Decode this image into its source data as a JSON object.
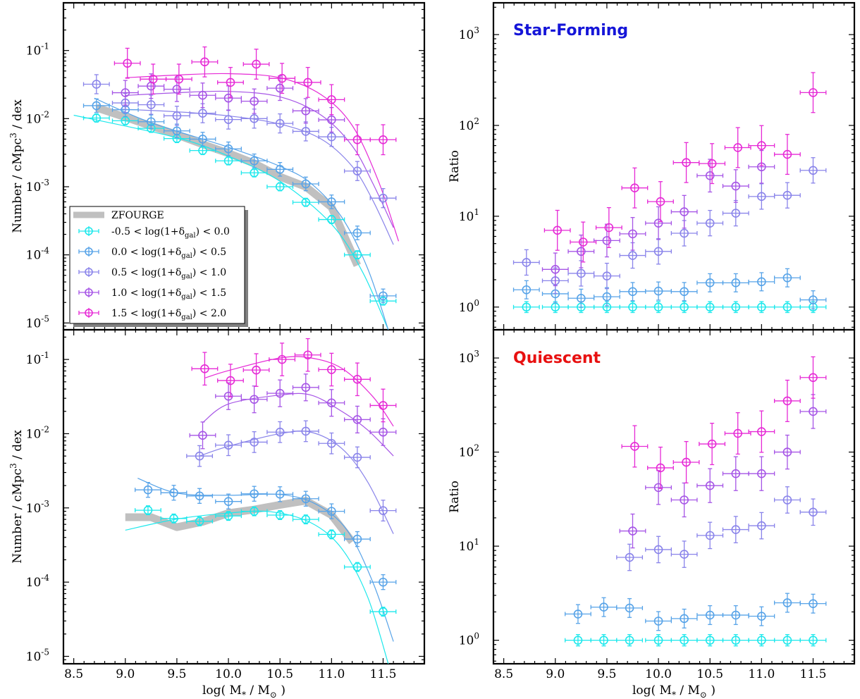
{
  "colors": {
    "bins": [
      "#1de8ec",
      "#57a3e8",
      "#8a84ea",
      "#a655e6",
      "#e62ad6"
    ],
    "zfourge": "#c0c0c0",
    "starforming_title": "#1515d8",
    "quiescent_title": "#e81010"
  },
  "axes": {
    "xlabel_left": "log( M",
    "xlabel_ast": "*",
    "xlabel_mid": " / M",
    "xlabel_sun": "⊙",
    "xlabel_right": " )",
    "ylabel_number_main": "Number / cMpc",
    "ylabel_number_exp": "3",
    "ylabel_number_tail": " / dex",
    "ylabel_ratio": "Ratio",
    "x_ticks": [
      "8.5",
      "9.0",
      "9.5",
      "10.0",
      "10.5",
      "11.0",
      "11.5"
    ]
  },
  "legend": {
    "zfourge": "ZFOURGE",
    "entries": [
      {
        "pre": "-0.5 < log(1+δ",
        "sub": "gal",
        "post": ") < 0.0"
      },
      {
        "pre": "0.0 < log(1+δ",
        "sub": "gal",
        "post": ") < 0.5"
      },
      {
        "pre": "0.5 < log(1+δ",
        "sub": "gal",
        "post": ") < 1.0"
      },
      {
        "pre": "1.0 < log(1+δ",
        "sub": "gal",
        "post": ") < 1.5"
      },
      {
        "pre": "1.5 < log(1+δ",
        "sub": "gal",
        "post": ") < 2.0"
      }
    ]
  },
  "panel_titles": {
    "starforming": "Star-Forming",
    "quiescent": "Quiescent"
  },
  "chart_data": [
    {
      "id": "sf_number",
      "type": "scatter",
      "title": "",
      "xlabel": "log( M* / M⊙ )",
      "ylabel": "Number / cMpc^3 / dex",
      "xlim": [
        8.4,
        11.9
      ],
      "ylim_log10": [
        -5.1,
        -0.3
      ],
      "yscale": "log",
      "y_ticks": [
        "10^-5",
        "10^-4",
        "10^-3",
        "10^-2",
        "10^-1"
      ],
      "zfourge": {
        "x": [
          8.72,
          9.0,
          9.25,
          9.5,
          9.75,
          10.0,
          10.25,
          10.5,
          10.75,
          11.0,
          11.25
        ],
        "y": [
          0.0145,
          0.0105,
          0.0078,
          0.0058,
          0.0042,
          0.0031,
          0.0022,
          0.0014,
          0.001,
          0.0005,
          7e-05
        ]
      },
      "series": [
        {
          "x": [
            8.72,
            9.0,
            9.25,
            9.5,
            9.75,
            10.0,
            10.25,
            10.5,
            10.75,
            11.0,
            11.25,
            11.5
          ],
          "y": [
            0.0102,
            0.0093,
            0.0072,
            0.0051,
            0.0034,
            0.0024,
            0.0016,
            0.001,
            0.00059,
            0.00033,
            0.0001,
            2.1e-05
          ],
          "fit": [
            [
              8.5,
              -1.95
            ],
            [
              9.5,
              -2.28
            ],
            [
              10.0,
              -2.55
            ],
            [
              10.5,
              -2.92
            ],
            [
              11.0,
              -3.55
            ],
            [
              11.3,
              -4.25
            ],
            [
              11.55,
              -5.1
            ]
          ]
        },
        {
          "x": [
            8.72,
            9.0,
            9.25,
            9.5,
            9.75,
            10.0,
            10.25,
            10.5,
            10.75,
            11.0,
            11.25,
            11.5
          ],
          "y": [
            0.0155,
            0.0135,
            0.009,
            0.0066,
            0.005,
            0.0036,
            0.0024,
            0.0018,
            0.0011,
            0.0006,
            0.00021,
            2.5e-05
          ],
          "fit": [
            [
              8.7,
              -1.7
            ],
            [
              9.25,
              -2.06
            ],
            [
              10.0,
              -2.42
            ],
            [
              10.5,
              -2.7
            ],
            [
              10.8,
              -2.95
            ],
            [
              11.1,
              -3.45
            ],
            [
              11.35,
              -4.2
            ],
            [
              11.55,
              -5.1
            ]
          ]
        },
        {
          "x": [
            8.72,
            9.0,
            9.25,
            9.5,
            9.75,
            10.0,
            10.25,
            10.5,
            10.75,
            11.0,
            11.25,
            11.5
          ],
          "y": [
            0.032,
            0.017,
            0.016,
            0.011,
            0.012,
            0.0097,
            0.01,
            0.0085,
            0.0065,
            0.0054,
            0.0017,
            0.00068
          ],
          "fit": [
            [
              8.95,
              -1.86
            ],
            [
              9.5,
              -1.9
            ],
            [
              10.0,
              -1.96
            ],
            [
              10.5,
              -2.08
            ],
            [
              10.9,
              -2.3
            ],
            [
              11.2,
              -2.7
            ],
            [
              11.4,
              -3.2
            ],
            [
              11.6,
              -3.85
            ]
          ]
        },
        {
          "x": [
            9.0,
            9.25,
            9.5,
            9.75,
            10.0,
            10.25,
            10.5,
            10.75,
            11.0
          ],
          "y": [
            0.024,
            0.03,
            0.027,
            0.022,
            0.02,
            0.018,
            0.028,
            0.013,
            0.0096
          ],
          "fit": [
            [
              9.0,
              -1.66
            ],
            [
              9.5,
              -1.62
            ],
            [
              10.0,
              -1.6
            ],
            [
              10.5,
              -1.68
            ],
            [
              10.9,
              -1.95
            ],
            [
              11.2,
              -2.4
            ],
            [
              11.4,
              -2.95
            ],
            [
              11.6,
              -3.6
            ]
          ]
        },
        {
          "x": [
            9.02,
            9.27,
            9.52,
            9.77,
            10.02,
            10.27,
            10.52,
            10.77,
            11.0,
            11.25,
            11.5
          ],
          "y": [
            0.065,
            0.038,
            0.038,
            0.068,
            0.034,
            0.063,
            0.039,
            0.034,
            0.019,
            0.0049,
            0.0049
          ],
          "fit": [
            [
              9.0,
              -1.4
            ],
            [
              9.5,
              -1.36
            ],
            [
              10.0,
              -1.34
            ],
            [
              10.5,
              -1.4
            ],
            [
              10.9,
              -1.65
            ],
            [
              11.2,
              -2.1
            ],
            [
              11.45,
              -2.9
            ],
            [
              11.65,
              -3.8
            ]
          ]
        }
      ]
    },
    {
      "id": "sf_ratio",
      "type": "scatter",
      "title": "Star-Forming",
      "xlabel": "log( M* / M⊙ )",
      "ylabel": "Ratio",
      "xlim": [
        8.4,
        11.9
      ],
      "ylim_log10": [
        -0.25,
        3.35
      ],
      "yscale": "log",
      "y_ticks": [
        "10^0",
        "10^1",
        "10^2",
        "10^3"
      ],
      "series": [
        {
          "x": [
            8.72,
            9.0,
            9.25,
            9.5,
            9.75,
            10.0,
            10.25,
            10.5,
            10.75,
            11.0,
            11.25,
            11.5
          ],
          "y": [
            1,
            1,
            1,
            1,
            1,
            1,
            1,
            1,
            1,
            1,
            1,
            1
          ]
        },
        {
          "x": [
            8.72,
            9.0,
            9.25,
            9.5,
            9.75,
            10.0,
            10.25,
            10.5,
            10.75,
            11.0,
            11.25,
            11.5
          ],
          "y": [
            1.55,
            1.4,
            1.25,
            1.3,
            1.48,
            1.5,
            1.48,
            1.85,
            1.85,
            1.9,
            2.1,
            1.2
          ]
        },
        {
          "x": [
            8.72,
            9.0,
            9.25,
            9.5,
            9.75,
            10.0,
            10.25,
            10.5,
            10.75,
            11.0,
            11.25,
            11.5
          ],
          "y": [
            3.1,
            1.95,
            2.35,
            2.2,
            3.7,
            4.1,
            6.5,
            8.4,
            10.8,
            16.5,
            17,
            32
          ]
        },
        {
          "x": [
            9.0,
            9.25,
            9.5,
            9.75,
            10.0,
            10.25,
            10.5,
            10.75,
            11.0
          ],
          "y": [
            2.6,
            4.1,
            5.4,
            6.4,
            8.4,
            11.2,
            28,
            21.5,
            35
          ]
        },
        {
          "x": [
            9.02,
            9.27,
            9.52,
            9.77,
            10.02,
            10.27,
            10.52,
            10.77,
            11.0,
            11.25,
            11.5
          ],
          "y": [
            7,
            5.2,
            7.5,
            20.5,
            14.5,
            39,
            38,
            57,
            60,
            48,
            230
          ]
        }
      ]
    },
    {
      "id": "q_number",
      "type": "scatter",
      "title": "",
      "xlabel": "log( M* / M⊙ )",
      "ylabel": "Number / cMpc^3 / dex",
      "xlim": [
        8.4,
        11.9
      ],
      "ylim_log10": [
        -5.1,
        -0.6
      ],
      "yscale": "log",
      "y_ticks": [
        "10^-5",
        "10^-4",
        "10^-3",
        "10^-2",
        "10^-1"
      ],
      "zfourge": {
        "x": [
          9.0,
          9.25,
          9.5,
          9.75,
          10.0,
          10.25,
          10.5,
          10.75,
          11.0,
          11.2
        ],
        "y": [
          0.00075,
          0.00075,
          0.00055,
          0.00065,
          0.00085,
          0.00095,
          0.0011,
          0.00125,
          0.0008,
          0.00035
        ]
      },
      "series": [
        {
          "x": [
            9.22,
            9.47,
            9.72,
            10.0,
            10.25,
            10.5,
            10.75,
            11.0,
            11.25,
            11.5
          ],
          "y": [
            0.00093,
            0.00072,
            0.00066,
            0.00078,
            0.0009,
            0.0008,
            0.0007,
            0.00044,
            0.00016,
            4e-05
          ],
          "fit": [
            [
              9.0,
              -3.3
            ],
            [
              9.5,
              -3.15
            ],
            [
              10.0,
              -3.07
            ],
            [
              10.4,
              -3.05
            ],
            [
              10.8,
              -3.2
            ],
            [
              11.1,
              -3.55
            ],
            [
              11.35,
              -4.2
            ],
            [
              11.55,
              -5.1
            ]
          ]
        },
        {
          "x": [
            9.22,
            9.47,
            9.72,
            10.0,
            10.25,
            10.5,
            10.75,
            11.0,
            11.25,
            11.5
          ],
          "y": [
            0.00175,
            0.0016,
            0.00145,
            0.00122,
            0.00155,
            0.00153,
            0.00133,
            0.0009,
            0.00038,
            0.0001
          ],
          "fit": [
            [
              9.12,
              -2.6
            ],
            [
              9.5,
              -2.8
            ],
            [
              10.0,
              -2.83
            ],
            [
              10.5,
              -2.82
            ],
            [
              10.85,
              -2.95
            ],
            [
              11.15,
              -3.3
            ],
            [
              11.4,
              -4.0
            ],
            [
              11.6,
              -4.8
            ]
          ]
        },
        {
          "x": [
            9.72,
            10.0,
            10.25,
            10.5,
            10.75,
            11.0,
            11.25,
            11.5
          ],
          "y": [
            0.005,
            0.007,
            0.0077,
            0.0105,
            0.0108,
            0.0074,
            0.0048,
            0.00092
          ],
          "fit": [
            [
              9.72,
              -2.3
            ],
            [
              10.0,
              -2.17
            ],
            [
              10.5,
              -2.0
            ],
            [
              10.8,
              -1.98
            ],
            [
              11.1,
              -2.2
            ],
            [
              11.35,
              -2.65
            ],
            [
              11.6,
              -3.35
            ]
          ]
        },
        {
          "x": [
            9.75,
            10.0,
            10.25,
            10.5,
            10.75,
            11.0,
            11.25,
            11.5
          ],
          "y": [
            0.0095,
            0.032,
            0.029,
            0.035,
            0.042,
            0.026,
            0.0155,
            0.0105
          ],
          "fit": [
            [
              9.75,
              -1.85
            ],
            [
              10.0,
              -1.6
            ],
            [
              10.5,
              -1.48
            ],
            [
              10.8,
              -1.48
            ],
            [
              11.1,
              -1.7
            ],
            [
              11.35,
              -1.95
            ],
            [
              11.6,
              -2.3
            ]
          ]
        },
        {
          "x": [
            9.77,
            10.02,
            10.27,
            10.52,
            10.77,
            11.0,
            11.25,
            11.5
          ],
          "y": [
            0.075,
            0.052,
            0.072,
            0.1,
            0.115,
            0.073,
            0.054,
            0.024
          ],
          "fit": [
            [
              9.77,
              -1.25
            ],
            [
              10.0,
              -1.15
            ],
            [
              10.5,
              -0.98
            ],
            [
              10.8,
              -0.98
            ],
            [
              11.1,
              -1.12
            ],
            [
              11.4,
              -1.5
            ],
            [
              11.6,
              -1.9
            ]
          ]
        }
      ]
    },
    {
      "id": "q_ratio",
      "type": "scatter",
      "title": "Quiescent",
      "xlabel": "log( M* / M⊙ )",
      "ylabel": "Ratio",
      "xlim": [
        8.4,
        11.9
      ],
      "ylim_log10": [
        -0.25,
        3.3
      ],
      "yscale": "log",
      "y_ticks": [
        "10^0",
        "10^1",
        "10^2",
        "10^3"
      ],
      "series": [
        {
          "x": [
            9.22,
            9.47,
            9.72,
            10.0,
            10.25,
            10.5,
            10.75,
            11.0,
            11.25,
            11.5
          ],
          "y": [
            1,
            1,
            1,
            1,
            1,
            1,
            1,
            1,
            1,
            1
          ]
        },
        {
          "x": [
            9.22,
            9.47,
            9.72,
            10.0,
            10.25,
            10.5,
            10.75,
            11.0,
            11.25,
            11.5
          ],
          "y": [
            1.9,
            2.25,
            2.2,
            1.6,
            1.7,
            1.85,
            1.85,
            1.8,
            2.5,
            2.45
          ]
        },
        {
          "x": [
            9.72,
            10.0,
            10.25,
            10.5,
            10.75,
            11.0,
            11.25,
            11.5
          ],
          "y": [
            7.6,
            9.2,
            8.2,
            13,
            15,
            16.5,
            31,
            23
          ]
        },
        {
          "x": [
            9.75,
            10.0,
            10.25,
            10.5,
            10.75,
            11.0,
            11.25,
            11.5
          ],
          "y": [
            14.5,
            42,
            31,
            44,
            59,
            59,
            100,
            270
          ]
        },
        {
          "x": [
            9.77,
            10.02,
            10.27,
            10.52,
            10.77,
            11.0,
            11.25,
            11.5
          ],
          "y": [
            115,
            68,
            78,
            122,
            158,
            165,
            350,
            620
          ]
        }
      ]
    }
  ]
}
